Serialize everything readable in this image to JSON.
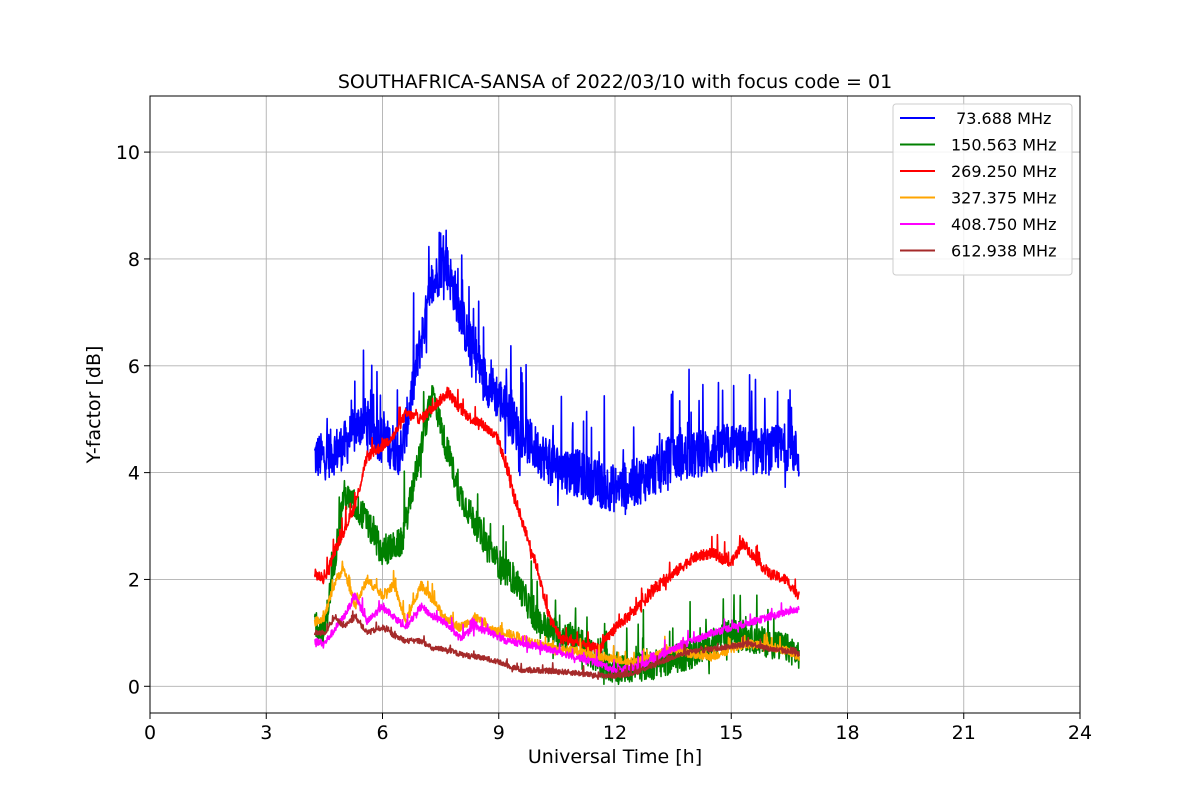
{
  "chart_data": {
    "type": "line",
    "title": "SOUTHAFRICA-SANSA of 2022/03/10 with focus code = 01",
    "xlabel": "Universal Time [h]",
    "ylabel": "Y-factor [dB]",
    "xlim": [
      0,
      24
    ],
    "ylim": [
      -0.5,
      11.05
    ],
    "xticks": [
      0,
      3,
      6,
      9,
      12,
      15,
      18,
      21,
      24
    ],
    "yticks": [
      0,
      2,
      4,
      6,
      8,
      10
    ],
    "grid": true,
    "legend_position": "top-right",
    "series": [
      {
        "name": " 73.688 MHz",
        "color": "#0000ff",
        "noise": 0.9,
        "x": [
          4.25,
          4.5,
          5.0,
          5.5,
          6.0,
          6.5,
          7.0,
          7.3,
          7.6,
          7.9,
          8.2,
          8.6,
          9.0,
          9.5,
          10.0,
          10.5,
          11.0,
          11.5,
          12.0,
          12.5,
          13.0,
          13.5,
          14.0,
          14.5,
          15.0,
          15.5,
          16.0,
          16.5,
          16.75
        ],
        "y": [
          4.3,
          4.3,
          4.5,
          5.0,
          4.6,
          4.4,
          6.5,
          7.5,
          8.0,
          7.3,
          6.5,
          5.8,
          5.4,
          4.8,
          4.4,
          4.1,
          4.0,
          3.8,
          3.7,
          3.8,
          4.0,
          4.3,
          4.3,
          4.4,
          4.5,
          4.4,
          4.4,
          4.5,
          4.3
        ]
      },
      {
        "name": "150.563 MHz",
        "color": "#008000",
        "noise": 0.55,
        "x": [
          4.25,
          4.5,
          5.0,
          5.5,
          6.0,
          6.5,
          7.0,
          7.3,
          7.6,
          8.0,
          8.5,
          9.0,
          9.5,
          10.0,
          10.5,
          11.0,
          11.5,
          12.0,
          12.5,
          13.0,
          13.5,
          14.0,
          14.5,
          15.0,
          15.5,
          16.0,
          16.5,
          16.75
        ],
        "y": [
          1.2,
          1.0,
          3.6,
          3.2,
          2.5,
          2.7,
          4.5,
          5.5,
          4.6,
          3.6,
          2.9,
          2.3,
          1.9,
          1.2,
          1.0,
          0.9,
          0.5,
          0.3,
          0.35,
          0.4,
          0.5,
          0.6,
          0.8,
          1.0,
          0.9,
          0.8,
          0.7,
          0.6
        ]
      },
      {
        "name": "269.250 MHz",
        "color": "#ff0000",
        "noise": 0.2,
        "x": [
          4.25,
          4.5,
          4.8,
          5.0,
          5.3,
          5.6,
          6.0,
          6.3,
          6.6,
          7.0,
          7.4,
          7.7,
          8.0,
          8.3,
          8.6,
          9.0,
          9.3,
          9.6,
          10.0,
          10.3,
          10.6,
          11.0,
          11.3,
          11.6,
          12.0,
          12.5,
          13.0,
          13.5,
          14.0,
          14.5,
          15.0,
          15.3,
          15.6,
          16.0,
          16.4,
          16.75
        ],
        "y": [
          2.1,
          2.0,
          2.6,
          2.9,
          3.4,
          4.3,
          4.5,
          4.7,
          5.1,
          5.0,
          5.3,
          5.5,
          5.2,
          5.0,
          4.9,
          4.6,
          3.8,
          3.1,
          2.2,
          1.3,
          0.9,
          0.8,
          0.75,
          0.7,
          1.1,
          1.4,
          1.8,
          2.1,
          2.4,
          2.5,
          2.3,
          2.7,
          2.4,
          2.1,
          2.0,
          1.7
        ]
      },
      {
        "name": "327.375 MHz",
        "color": "#ffa500",
        "noise": 0.16,
        "x": [
          4.25,
          4.5,
          4.8,
          5.0,
          5.3,
          5.6,
          6.0,
          6.3,
          6.6,
          7.0,
          7.3,
          7.6,
          8.0,
          8.4,
          8.8,
          9.2,
          9.6,
          10.0,
          10.5,
          11.0,
          11.5,
          12.0,
          12.5,
          13.0,
          13.5,
          14.0,
          14.5,
          15.0,
          15.5,
          16.0,
          16.5,
          16.75
        ],
        "y": [
          1.2,
          1.3,
          2.0,
          2.2,
          1.5,
          2.0,
          1.7,
          1.9,
          1.2,
          1.9,
          1.6,
          1.3,
          1.1,
          1.3,
          1.05,
          1.0,
          0.9,
          0.8,
          0.7,
          0.65,
          0.55,
          0.5,
          0.45,
          0.55,
          0.7,
          0.6,
          0.55,
          0.7,
          0.8,
          0.75,
          0.65,
          0.55
        ]
      },
      {
        "name": "408.750 MHz",
        "color": "#ff00ff",
        "noise": 0.13,
        "x": [
          4.25,
          4.5,
          4.8,
          5.0,
          5.3,
          5.6,
          6.0,
          6.3,
          6.6,
          7.0,
          7.3,
          7.6,
          8.0,
          8.4,
          8.8,
          9.2,
          9.6,
          10.0,
          10.5,
          11.0,
          11.5,
          12.0,
          12.5,
          13.0,
          13.5,
          14.0,
          14.5,
          15.0,
          15.5,
          16.0,
          16.5,
          16.75
        ],
        "y": [
          0.85,
          0.8,
          1.1,
          1.3,
          1.7,
          1.2,
          1.5,
          1.3,
          1.1,
          1.5,
          1.3,
          1.2,
          0.9,
          1.1,
          1.0,
          0.85,
          0.8,
          0.75,
          0.65,
          0.55,
          0.45,
          0.3,
          0.35,
          0.5,
          0.7,
          0.85,
          1.0,
          1.1,
          1.2,
          1.3,
          1.4,
          1.45
        ]
      },
      {
        "name": "612.938 MHz",
        "color": "#a52a2a",
        "noise": 0.1,
        "x": [
          4.25,
          4.5,
          4.8,
          5.0,
          5.3,
          5.6,
          6.0,
          6.3,
          6.6,
          7.0,
          7.3,
          7.6,
          8.0,
          8.4,
          8.8,
          9.2,
          9.6,
          10.0,
          10.5,
          11.0,
          11.5,
          12.0,
          12.5,
          13.0,
          13.5,
          14.0,
          14.5,
          15.0,
          15.5,
          16.0,
          16.5,
          16.75
        ],
        "y": [
          1.0,
          1.0,
          1.3,
          1.1,
          1.3,
          1.0,
          1.1,
          0.95,
          0.85,
          0.85,
          0.7,
          0.7,
          0.6,
          0.55,
          0.5,
          0.4,
          0.3,
          0.3,
          0.28,
          0.25,
          0.2,
          0.2,
          0.25,
          0.4,
          0.55,
          0.65,
          0.7,
          0.75,
          0.8,
          0.7,
          0.65,
          0.6
        ]
      }
    ]
  }
}
